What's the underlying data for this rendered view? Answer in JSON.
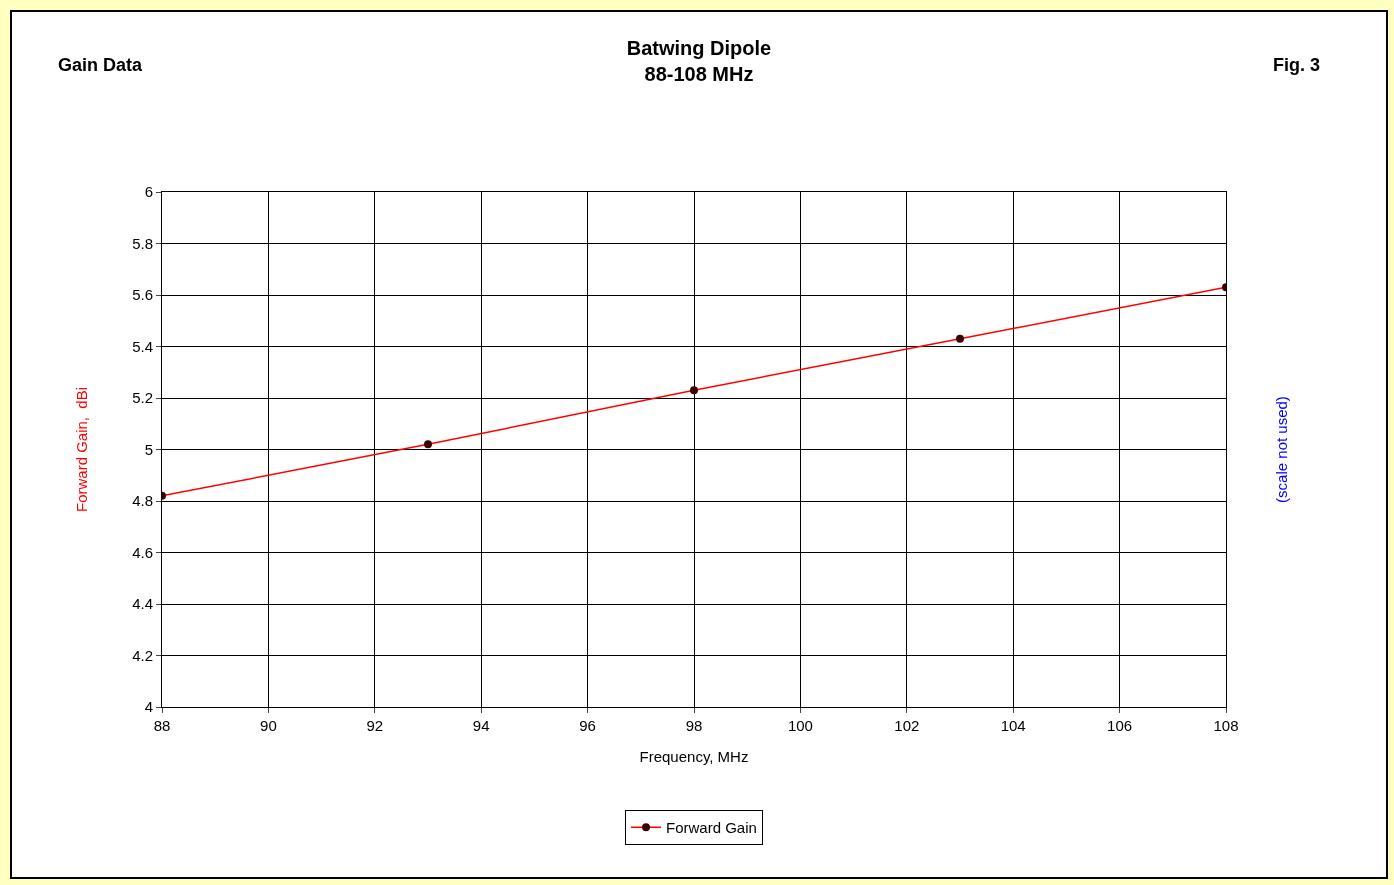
{
  "chart_data": {
    "type": "line",
    "title": "Batwing Dipole",
    "subtitle": "88-108 MHz",
    "xlabel": "Frequency, MHz",
    "ylabel": "Forward Gain,  dBi",
    "y2label": "(scale not used)",
    "annotations": [
      "Gain Data",
      "Fig. 3"
    ],
    "x": [
      88,
      93,
      98,
      103,
      108
    ],
    "series": [
      {
        "name": "Forward Gain",
        "color": "#ff0000",
        "values": [
          4.82,
          5.02,
          5.23,
          5.43,
          5.63
        ]
      }
    ],
    "xlim": [
      88,
      108
    ],
    "xticks": [
      88,
      90,
      92,
      94,
      96,
      98,
      100,
      102,
      104,
      106,
      108
    ],
    "ylim": [
      4,
      6
    ],
    "yticks": [
      4,
      4.2,
      4.4,
      4.6,
      4.8,
      5,
      5.2,
      5.4,
      5.6,
      5.8,
      6
    ],
    "grid": true,
    "legend": "bottom",
    "marker": "circle",
    "line_style": "solid"
  }
}
